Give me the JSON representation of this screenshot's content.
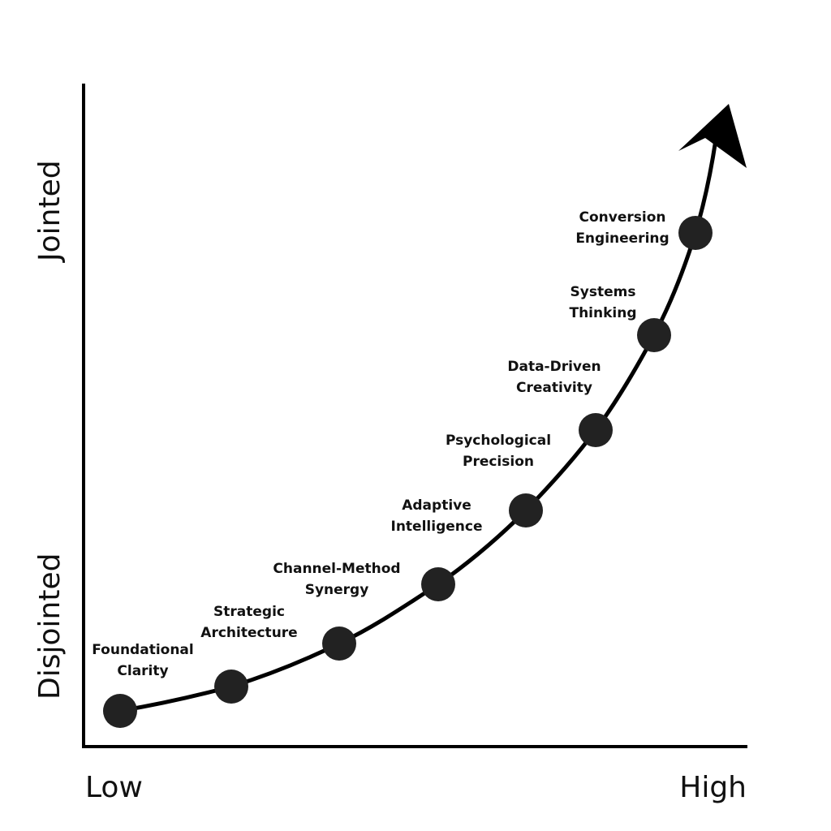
{
  "axes": {
    "x_low": "Low",
    "x_high": "High",
    "y_low": "Disjointed",
    "y_high": "Jointed"
  },
  "stages": [
    {
      "line1": "Foundational",
      "line2": "Clarity"
    },
    {
      "line1": "Strategic",
      "line2": "Architecture"
    },
    {
      "line1": "Channel-Method",
      "line2": "Synergy"
    },
    {
      "line1": "Adaptive",
      "line2": "Intelligence"
    },
    {
      "line1": "Psychological",
      "line2": "Precision"
    },
    {
      "line1": "Data-Driven",
      "line2": "Creativity"
    },
    {
      "line1": "Systems",
      "line2": "Thinking"
    },
    {
      "line1": "Conversion",
      "line2": "Engineering"
    }
  ],
  "colors": {
    "line": "#000000",
    "dot": "#222222",
    "text": "#111111"
  }
}
